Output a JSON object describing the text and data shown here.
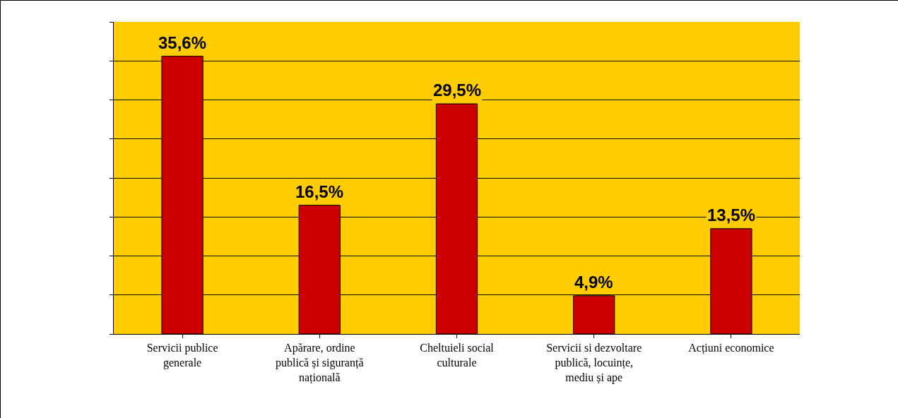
{
  "chart_data": {
    "type": "bar",
    "categories": [
      "Servicii publice generale",
      "Apărare, ordine publică și siguranță națională",
      "Cheltuieli social culturale",
      "Servicii si dezvoltare publică, locuințe, mediu și ape",
      "Acțiuni economice"
    ],
    "values": [
      35.6,
      16.5,
      29.5,
      4.9,
      13.5
    ],
    "value_labels": [
      "35,6%",
      "16,5%",
      "29,5%",
      "4,9%",
      "13,5%"
    ],
    "color": "#cc0000",
    "ylim": [
      0,
      40
    ],
    "yticks": [
      {
        "value": 0,
        "label": null
      },
      {
        "value": 5,
        "label": null
      },
      {
        "value": 10,
        "label": null
      },
      {
        "value": 15,
        "label": null
      },
      {
        "value": 20,
        "label": null
      },
      {
        "value": 25,
        "label": null
      },
      {
        "value": 30,
        "label": null
      },
      {
        "value": 35,
        "label": null
      },
      {
        "value": 40,
        "label": null
      }
    ],
    "grid": "y"
  }
}
